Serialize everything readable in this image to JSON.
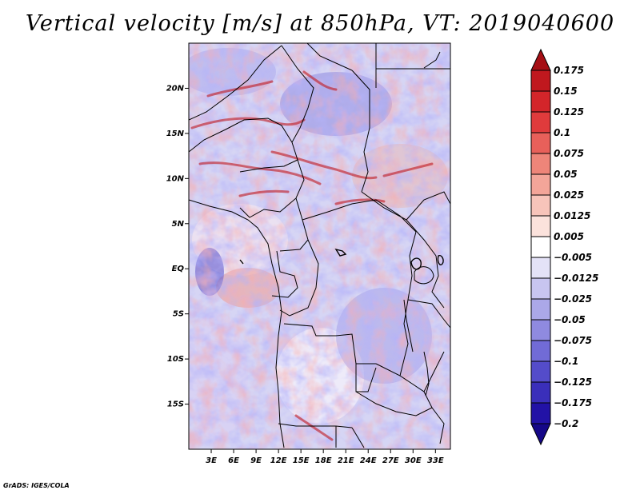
{
  "title": "Vertical velocity [m/s] at 850hPa, VT: 2019040600",
  "credit": "GrADS: IGES/COLA",
  "chart_data": {
    "type": "heatmap",
    "title": "Vertical velocity [m/s] at 850hPa, VT: 2019040600",
    "variable": "Vertical velocity",
    "units": "m/s",
    "level": "850hPa",
    "valid_time": "2019040600",
    "xlim": [
      0,
      35
    ],
    "ylim": [
      -20,
      25
    ],
    "x_ticks": [
      "3E",
      "6E",
      "9E",
      "12E",
      "15E",
      "18E",
      "21E",
      "24E",
      "27E",
      "30E",
      "33E"
    ],
    "y_ticks": [
      "20N",
      "15N",
      "10N",
      "5N",
      "EQ",
      "5S",
      "10S",
      "15S"
    ],
    "colorbar": {
      "labels": [
        "0.175",
        "0.15",
        "0.125",
        "0.1",
        "0.075",
        "0.05",
        "0.025",
        "0.0125",
        "0.005",
        "−0.005",
        "−0.0125",
        "−0.025",
        "−0.05",
        "−0.075",
        "−0.1",
        "−0.125",
        "−0.175",
        "−0.2"
      ],
      "colors": [
        "#a50f15",
        "#c0181e",
        "#d3252a",
        "#e03b3c",
        "#e8605a",
        "#ee8579",
        "#f3a599",
        "#f7c4ba",
        "#fbe2dc",
        "#ffffff",
        "#e4e2f7",
        "#c8c5f0",
        "#aba8e8",
        "#8f8ae0",
        "#716bd6",
        "#544cca",
        "#3a2fba",
        "#2212a6",
        "#150788"
      ]
    }
  }
}
